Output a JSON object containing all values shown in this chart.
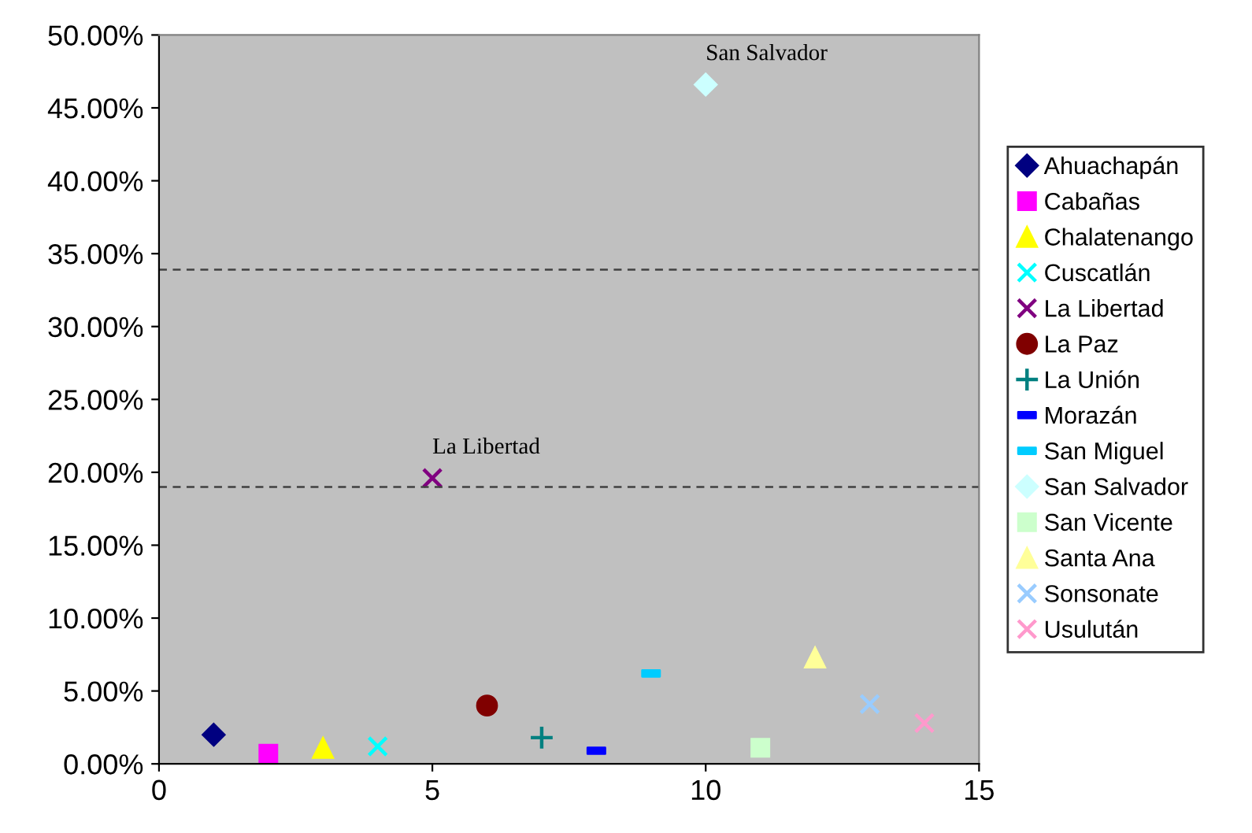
{
  "chart_data": {
    "type": "scatter",
    "xlim": [
      0,
      15
    ],
    "xticks": [
      0,
      5,
      10,
      15
    ],
    "ylim": [
      0,
      50
    ],
    "yticks": [
      {
        "value": 0,
        "label": "0.00%"
      },
      {
        "value": 5,
        "label": "5.00%"
      },
      {
        "value": 10,
        "label": "10.00%"
      },
      {
        "value": 15,
        "label": "15.00%"
      },
      {
        "value": 20,
        "label": "20.00%"
      },
      {
        "value": 25,
        "label": "25.00%"
      },
      {
        "value": 30,
        "label": "30.00%"
      },
      {
        "value": 35,
        "label": "35.00%"
      },
      {
        "value": 40,
        "label": "40.00%"
      },
      {
        "value": 45,
        "label": "45.00%"
      },
      {
        "value": 50,
        "label": "50.00%"
      }
    ],
    "grid": false,
    "legend": "right",
    "ref_lines": [
      {
        "axis": "y",
        "value": 33.9,
        "line_style": "dashed",
        "color": "#404040"
      },
      {
        "axis": "y",
        "value": 19.0,
        "line_style": "dashed",
        "color": "#404040"
      }
    ],
    "annotations": [
      {
        "text": "San Salvador",
        "x": 10,
        "y": 46.6
      },
      {
        "text": "La Libertad",
        "x": 5,
        "y": 19.6
      }
    ],
    "series": [
      {
        "name": "Ahuachapán",
        "color": "#000080",
        "marker": "diamond",
        "x": [
          1
        ],
        "values": [
          2.0
        ]
      },
      {
        "name": "Cabañas",
        "color": "#ff00ff",
        "marker": "square",
        "x": [
          2
        ],
        "values": [
          0.7
        ]
      },
      {
        "name": "Chalatenango",
        "color": "#ffff00",
        "marker": "triangle",
        "x": [
          3
        ],
        "values": [
          1.1
        ]
      },
      {
        "name": "Cuscatlán",
        "color": "#00ffff",
        "marker": "cross",
        "x": [
          4
        ],
        "values": [
          1.2
        ]
      },
      {
        "name": "La Libertad",
        "color": "#800080",
        "marker": "cross",
        "x": [
          5
        ],
        "values": [
          19.6
        ]
      },
      {
        "name": "La Paz",
        "color": "#800000",
        "marker": "circle",
        "x": [
          6
        ],
        "values": [
          4.0
        ]
      },
      {
        "name": "La Unión",
        "color": "#008080",
        "marker": "plus",
        "x": [
          7
        ],
        "values": [
          1.8
        ]
      },
      {
        "name": "Morazán",
        "color": "#0000ff",
        "x": [
          8
        ],
        "values": [
          0.9
        ]
      },
      {
        "name": "San Miguel",
        "color": "#00ccff",
        "x": [
          9
        ],
        "values": [
          6.2
        ]
      },
      {
        "name": "San Salvador",
        "color": "#ccffff",
        "marker": "diamond",
        "x": [
          10
        ],
        "values": [
          46.6
        ]
      },
      {
        "name": "San Vicente",
        "color": "#ccffcc",
        "marker": "square",
        "x": [
          11
        ],
        "values": [
          1.1
        ]
      },
      {
        "name": "Santa Ana",
        "color": "#ffff99",
        "marker": "triangle",
        "x": [
          12
        ],
        "values": [
          7.3
        ]
      },
      {
        "name": "Sonsonate",
        "color": "#99ccff",
        "marker": "cross",
        "x": [
          13
        ],
        "values": [
          4.1
        ]
      },
      {
        "name": "Usulután",
        "color": "#ff99cc",
        "marker": "cross",
        "x": [
          14
        ],
        "values": [
          2.8
        ]
      }
    ]
  }
}
